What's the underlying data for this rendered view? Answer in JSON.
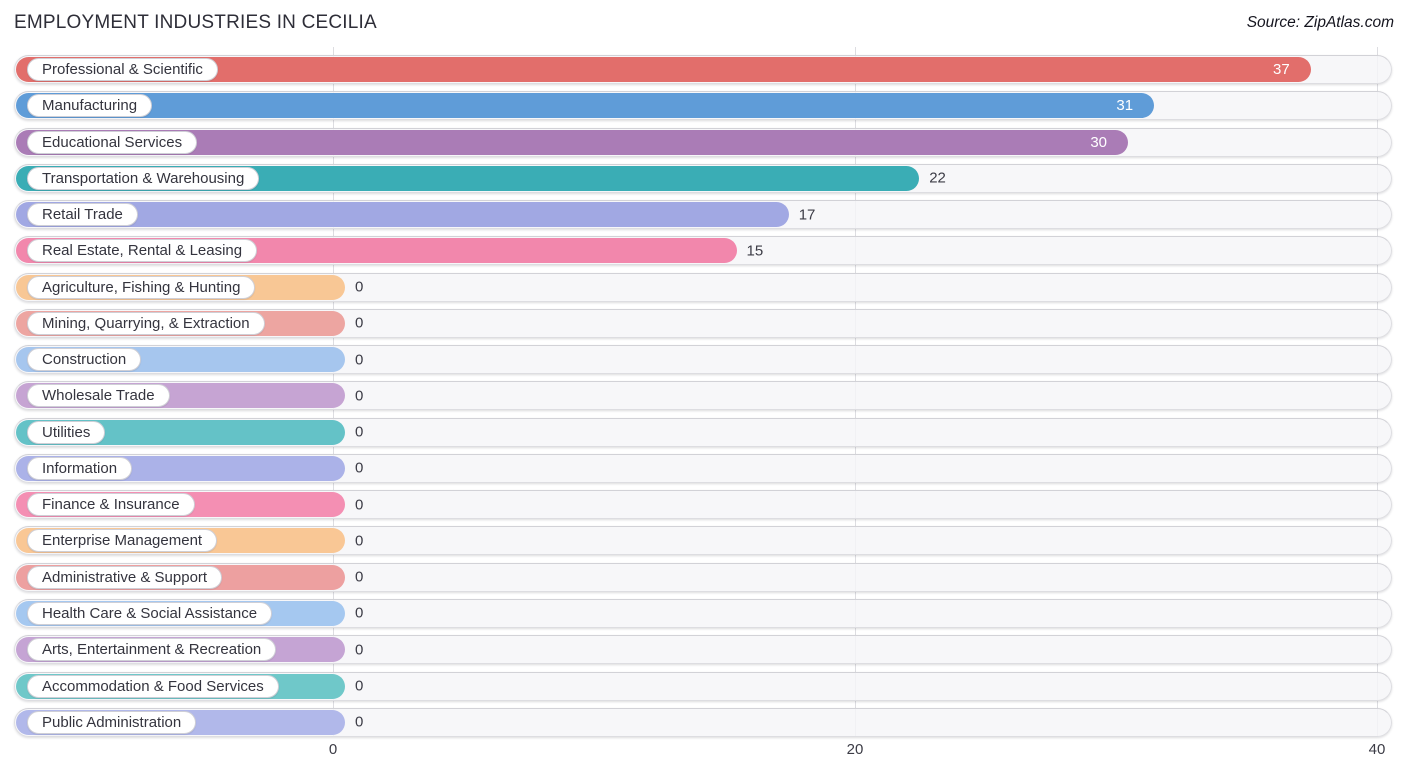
{
  "title": "EMPLOYMENT INDUSTRIES IN CECILIA",
  "source": "Source: ZipAtlas.com",
  "chart_data": {
    "type": "bar",
    "orientation": "horizontal",
    "title": "EMPLOYMENT INDUSTRIES IN CECILIA",
    "xlabel": "",
    "ylabel": "",
    "xlim": [
      0,
      40
    ],
    "x_ticks": [
      0,
      20,
      40
    ],
    "grid": true,
    "categories": [
      "Professional & Scientific",
      "Manufacturing",
      "Educational Services",
      "Transportation & Warehousing",
      "Retail Trade",
      "Real Estate, Rental & Leasing",
      "Agriculture, Fishing & Hunting",
      "Mining, Quarrying, & Extraction",
      "Construction",
      "Wholesale Trade",
      "Utilities",
      "Information",
      "Finance & Insurance",
      "Enterprise Management",
      "Administrative & Support",
      "Health Care & Social Assistance",
      "Arts, Entertainment & Recreation",
      "Accommodation & Food Services",
      "Public Administration"
    ],
    "values": [
      37,
      31,
      30,
      22,
      17,
      15,
      0,
      0,
      0,
      0,
      0,
      0,
      0,
      0,
      0,
      0,
      0,
      0,
      0
    ],
    "bar_colors": [
      "#e26e6b",
      "#5f9cd8",
      "#aa7cb6",
      "#3aadb5",
      "#a1a8e3",
      "#f287ac",
      "#f8c795",
      "#eda5a1",
      "#a6c6ee",
      "#c6a4d3",
      "#64c2c7",
      "#abb2e8",
      "#f48fb3",
      "#f9c795",
      "#eda0a0",
      "#a5c8f0",
      "#c5a4d4",
      "#6fc8c9",
      "#b1b8ea"
    ],
    "value_labels_inside": [
      37,
      31,
      30
    ],
    "colors": {
      "grid": "#dddde1",
      "track_bg": "#f5f5f8",
      "track_border": "#dddde1",
      "pill_bg": "#ffffff",
      "pill_border": "#cfcfd6",
      "value_inside_text": "#ffffff",
      "value_outside_text": "#3c3c46",
      "title_text": "#2e2e38"
    }
  }
}
